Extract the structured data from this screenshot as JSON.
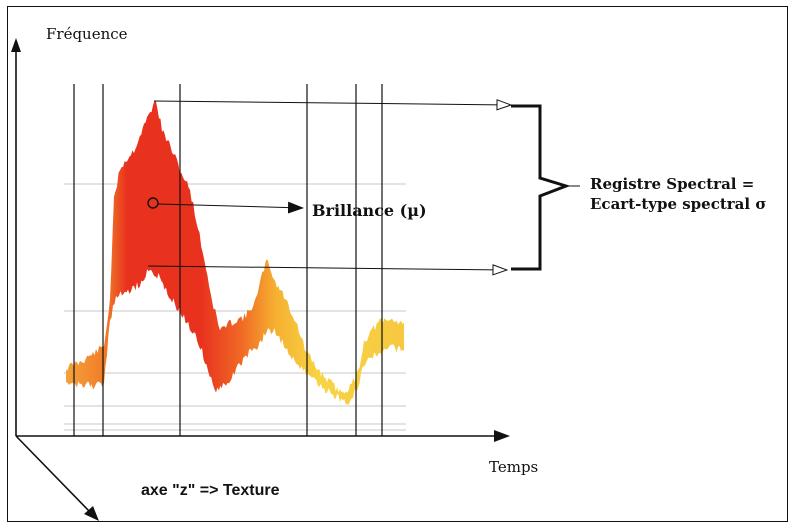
{
  "axes": {
    "y_label": "Fréquence",
    "x_label": "Temps",
    "z_label": "axe \"z\" => Texture"
  },
  "annotations": {
    "brightness": "Brillance (µ)",
    "register_line1": "Registre Spectral =",
    "register_line2": "Ecart-type spectral σ"
  },
  "colors": {
    "spectrum_hot": "#e8321e",
    "spectrum_mid": "#f07a28",
    "spectrum_cool": "#f6d040",
    "lines": "#111111",
    "grid": "#c8c8c8"
  }
}
